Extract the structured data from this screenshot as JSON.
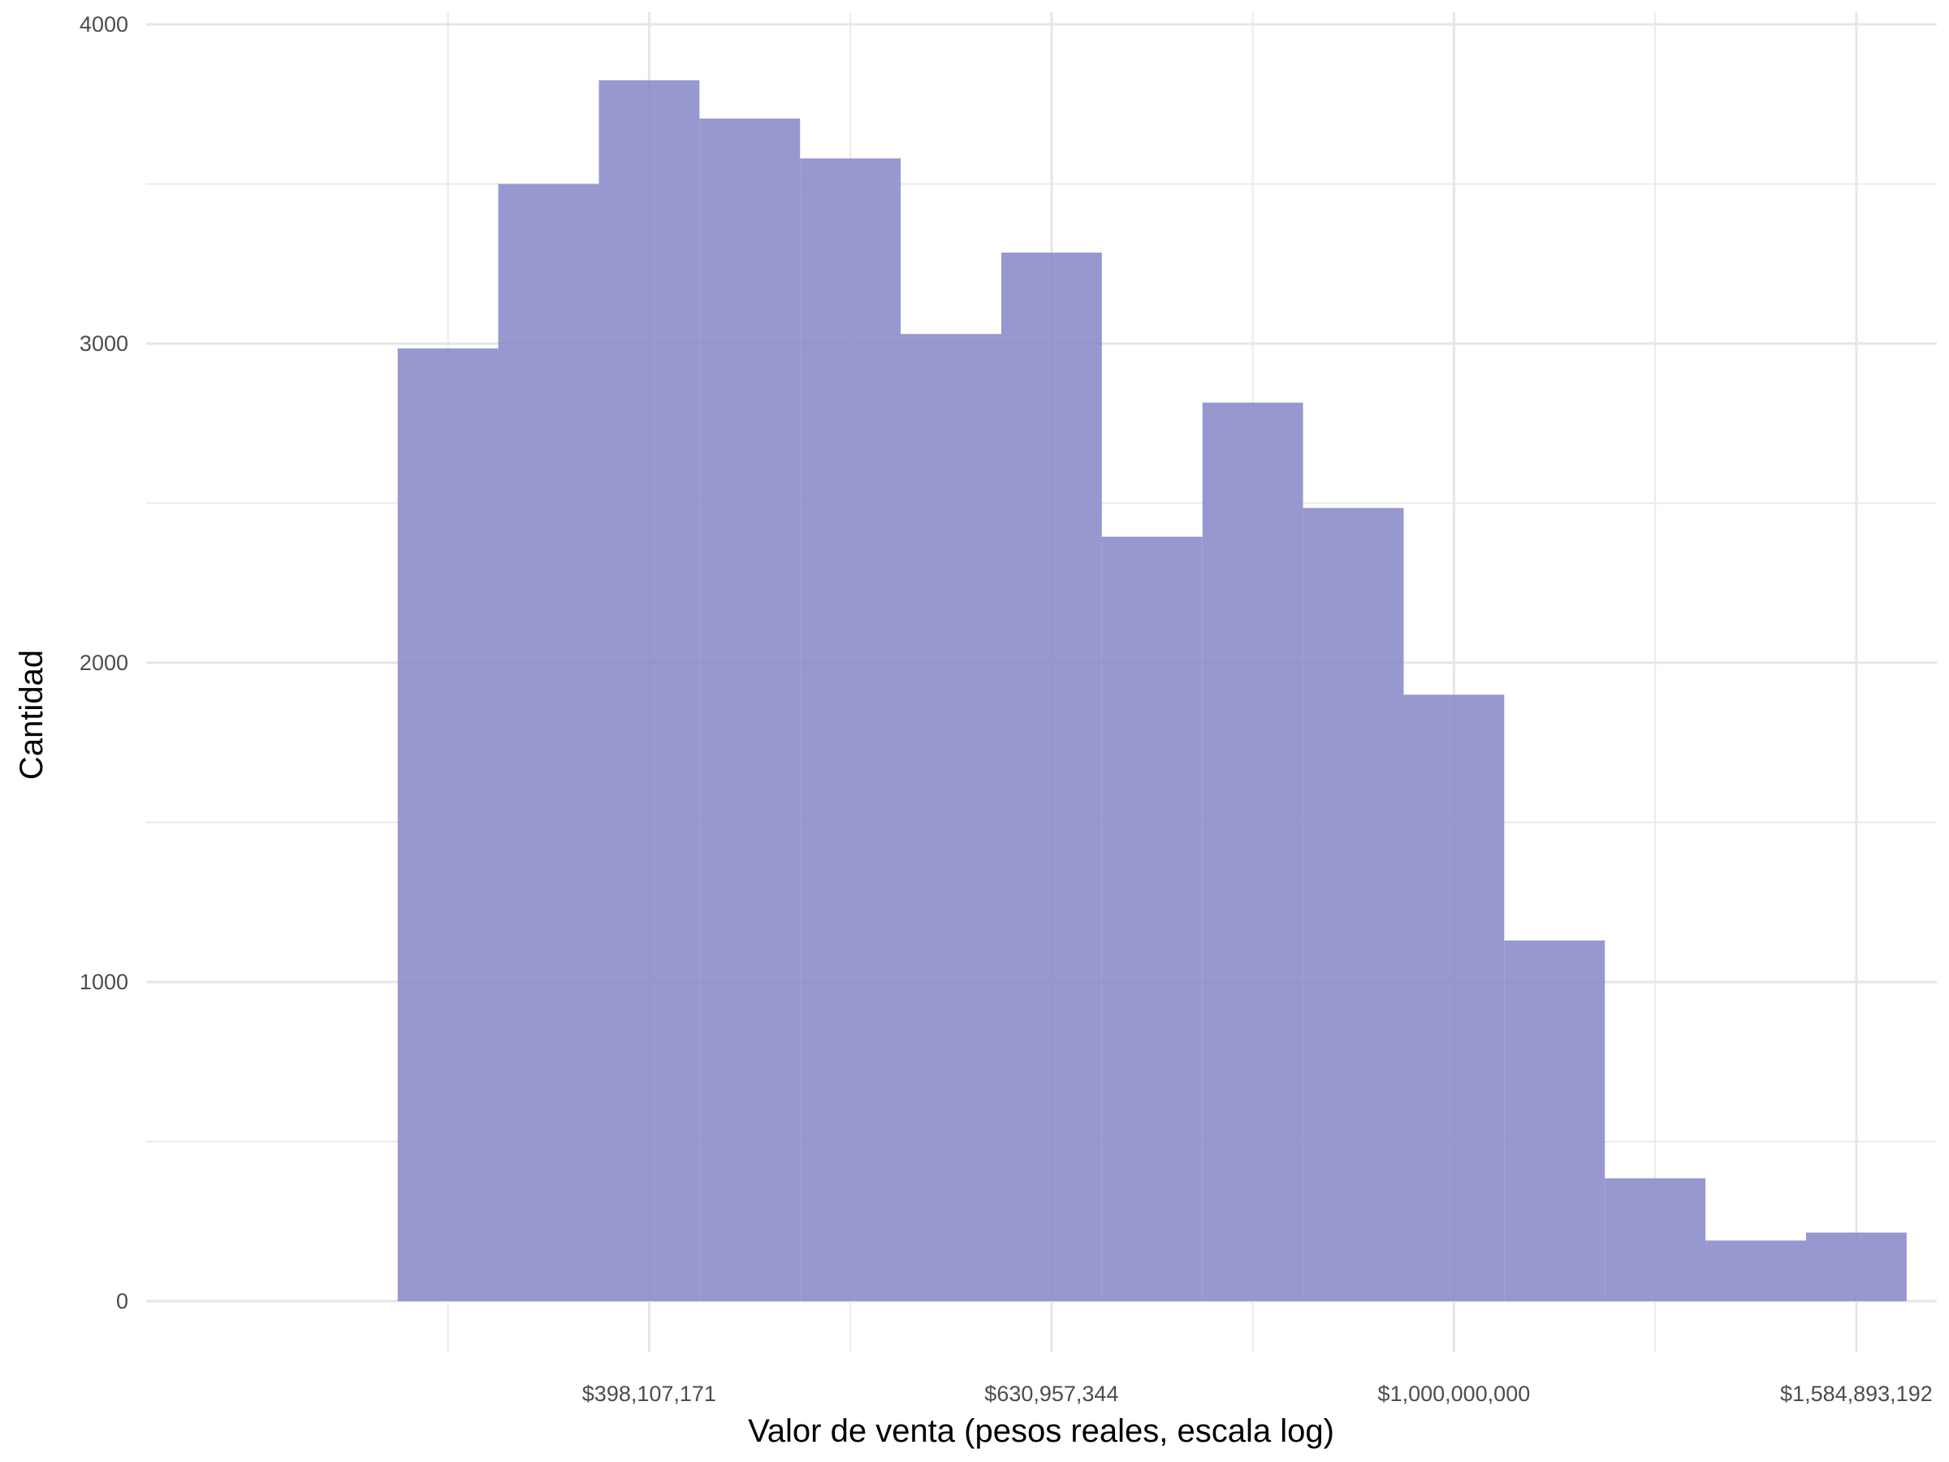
{
  "chart_data": {
    "type": "bar",
    "subtype": "histogram",
    "xlabel": "Valor de venta (pesos reales, escala log)",
    "ylabel": "Cantidad",
    "x_scale": "log10",
    "x_axis_log10_range": [
      8.35,
      9.24
    ],
    "ylim": [
      0,
      4000
    ],
    "y_ticks": [
      0,
      1000,
      2000,
      3000,
      4000
    ],
    "x_ticks": [
      {
        "log10": 8.6,
        "label": "$398,107,171"
      },
      {
        "log10": 8.8,
        "label": "$630,957,344"
      },
      {
        "log10": 9.0,
        "label": "$1,000,000,000"
      },
      {
        "log10": 9.2,
        "label": "$1,584,893,192"
      }
    ],
    "bins_log10": {
      "start": 8.475,
      "width": 0.05,
      "counts": [
        2985,
        3500,
        3825,
        3705,
        3580,
        3030,
        3285,
        2395,
        2815,
        2485,
        1900,
        1130,
        385,
        190,
        215
      ]
    },
    "grid": true,
    "legend": "none",
    "fill_color": "#8a8aca"
  }
}
